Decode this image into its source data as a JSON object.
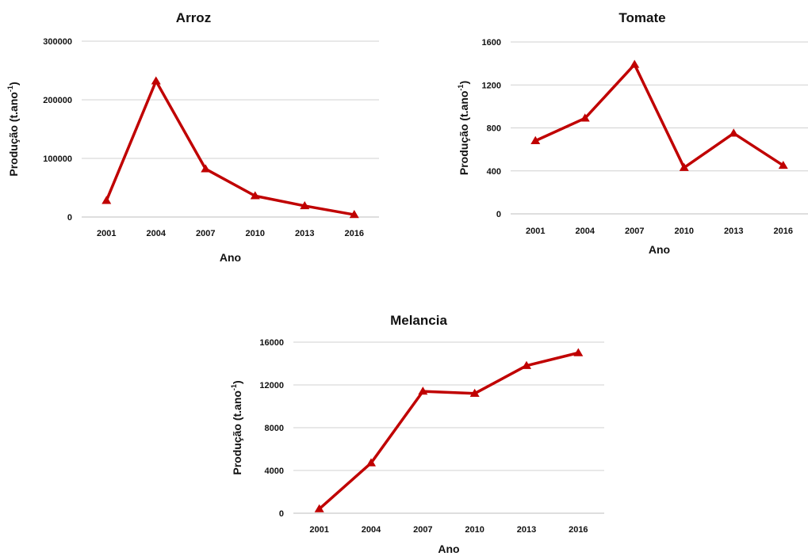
{
  "colors": {
    "series": "#c00000",
    "grid": "#d0d0d0"
  },
  "chart_data": [
    {
      "type": "line",
      "title": "Arroz",
      "xlabel": "Ano",
      "ylabel": "Produção (t.ano",
      "ylabel_sup": "-1",
      "ylabel_close": ")",
      "categories": [
        "2001",
        "2004",
        "2007",
        "2010",
        "2013",
        "2016"
      ],
      "yticks": [
        "0",
        "100000",
        "200000",
        "300000"
      ],
      "ylim": [
        0,
        300000
      ],
      "series": [
        {
          "values": [
            28000,
            232000,
            82000,
            36000,
            19000,
            4000
          ]
        }
      ],
      "grid": true,
      "marker": "triangle"
    },
    {
      "type": "line",
      "title": "Tomate",
      "xlabel": "Ano",
      "ylabel": "Produção (t.ano",
      "ylabel_sup": "-1",
      "ylabel_close": ")",
      "categories": [
        "2001",
        "2004",
        "2007",
        "2010",
        "2013",
        "2016"
      ],
      "yticks": [
        "0",
        "400",
        "800",
        "1200",
        "1600"
      ],
      "ylim": [
        0,
        1600
      ],
      "series": [
        {
          "values": [
            680,
            890,
            1390,
            430,
            750,
            450
          ]
        }
      ],
      "grid": true,
      "marker": "triangle"
    },
    {
      "type": "line",
      "title": "Melancia",
      "xlabel": "Ano",
      "ylabel": "Produção (t.ano",
      "ylabel_sup": "-1",
      "ylabel_close": ")",
      "categories": [
        "2001",
        "2004",
        "2007",
        "2010",
        "2013",
        "2016"
      ],
      "yticks": [
        "0",
        "4000",
        "8000",
        "12000",
        "16000"
      ],
      "ylim": [
        0,
        16000
      ],
      "series": [
        {
          "values": [
            400,
            4700,
            11400,
            11200,
            13800,
            15000
          ]
        }
      ],
      "grid": true,
      "marker": "triangle"
    }
  ]
}
